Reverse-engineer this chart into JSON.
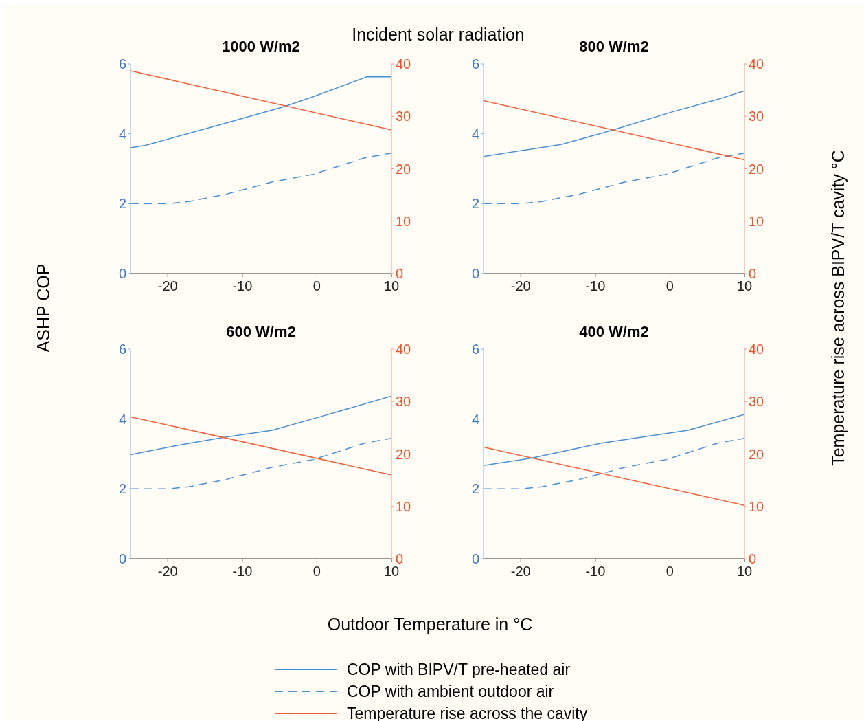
{
  "chart_data": [
    {
      "type": "line",
      "title": "1000 W/m2",
      "annotations": [
        "Incident solar radiation"
      ],
      "xlabel": "Outdoor Temperature in °C",
      "ylabel": "ASHP COP",
      "y2label": "Temperature rise across BIPV/T cavity °C",
      "legend": "bottom",
      "xlim": [
        -25,
        10
      ],
      "xticks": [
        -20,
        -10,
        0,
        10
      ],
      "ylim": [
        0,
        6
      ],
      "yticks": [
        0,
        2,
        4,
        6
      ],
      "y2lim": [
        0,
        40
      ],
      "y2ticks": [
        0,
        10,
        20,
        30,
        40
      ],
      "series": [
        {
          "name": "COP with BIPV/T pre-heated air",
          "color": "#4a8fd4",
          "x": [
            -25,
            -23,
            -13,
            -4.5,
            -0.5,
            6.7,
            10
          ],
          "values": [
            3.6,
            3.67,
            4.26,
            4.77,
            5.06,
            5.63,
            5.63
          ]
        },
        {
          "name": "COP with ambient outdoor air",
          "color": "#4a8fd4",
          "line_style": "dashed",
          "x": [
            -25,
            -20,
            -17.2,
            -12.2,
            -6,
            -0.5,
            6.4,
            10
          ],
          "values": [
            2.0,
            2.0,
            2.06,
            2.27,
            2.62,
            2.84,
            3.31,
            3.45
          ]
        },
        {
          "name": "Temperature rise across the cavity",
          "color": "#f0603a",
          "axis": "y2",
          "x": [
            -25,
            10
          ],
          "values": [
            38.7,
            27.4
          ]
        }
      ]
    },
    {
      "type": "line",
      "title": "800 W/m2",
      "xlim": [
        -25,
        10
      ],
      "xticks": [
        -20,
        -10,
        0,
        10
      ],
      "ylim": [
        0,
        6
      ],
      "yticks": [
        0,
        2,
        4,
        6
      ],
      "y2lim": [
        0,
        40
      ],
      "y2ticks": [
        0,
        10,
        20,
        30,
        40
      ],
      "series": [
        {
          "color": "#4a8fd4",
          "x": [
            -25,
            -14.5,
            -7.9,
            0.2,
            6.5,
            10
          ],
          "values": [
            3.35,
            3.7,
            4.09,
            4.62,
            4.99,
            5.23
          ]
        },
        {
          "color": "#4a8fd4",
          "line_style": "dashed",
          "x": [
            -25,
            -20,
            -17.2,
            -12.2,
            -6,
            -0.5,
            6.4,
            10
          ],
          "values": [
            2.0,
            2.0,
            2.06,
            2.27,
            2.62,
            2.84,
            3.31,
            3.45
          ]
        },
        {
          "color": "#f0603a",
          "axis": "y2",
          "x": [
            -25,
            10
          ],
          "values": [
            33.0,
            21.7
          ]
        }
      ]
    },
    {
      "type": "line",
      "title": "600 W/m2",
      "xlim": [
        -25,
        10
      ],
      "xticks": [
        -20,
        -10,
        0,
        10
      ],
      "ylim": [
        0,
        6
      ],
      "yticks": [
        0,
        2,
        4,
        6
      ],
      "y2lim": [
        0,
        40
      ],
      "y2ticks": [
        0,
        10,
        20,
        30,
        40
      ],
      "series": [
        {
          "color": "#4a8fd4",
          "x": [
            -25,
            -18.6,
            -12.3,
            -6,
            0.2,
            10
          ],
          "values": [
            2.98,
            3.25,
            3.48,
            3.68,
            4.05,
            4.66
          ]
        },
        {
          "color": "#4a8fd4",
          "line_style": "dashed",
          "x": [
            -25,
            -20,
            -17.2,
            -12.2,
            -6,
            -0.5,
            6.4,
            10
          ],
          "values": [
            2.0,
            2.0,
            2.06,
            2.27,
            2.62,
            2.84,
            3.31,
            3.45
          ]
        },
        {
          "color": "#f0603a",
          "axis": "y2",
          "x": [
            -25,
            10
          ],
          "values": [
            27.1,
            16.0
          ]
        }
      ]
    },
    {
      "type": "line",
      "title": "400 W/m2",
      "xlim": [
        -25,
        10
      ],
      "xticks": [
        -20,
        -10,
        0,
        10
      ],
      "ylim": [
        0,
        6
      ],
      "yticks": [
        0,
        2,
        4,
        6
      ],
      "y2lim": [
        0,
        40
      ],
      "y2ticks": [
        0,
        10,
        20,
        30,
        40
      ],
      "series": [
        {
          "color": "#4a8fd4",
          "x": [
            -25,
            -18.6,
            -9.2,
            2.4,
            10
          ],
          "values": [
            2.67,
            2.88,
            3.31,
            3.68,
            4.13
          ]
        },
        {
          "color": "#4a8fd4",
          "line_style": "dashed",
          "x": [
            -25,
            -20,
            -17.2,
            -12.2,
            -6,
            -0.5,
            6.4,
            10
          ],
          "values": [
            2.0,
            2.0,
            2.06,
            2.27,
            2.62,
            2.84,
            3.31,
            3.45
          ]
        },
        {
          "color": "#f0603a",
          "axis": "y2",
          "x": [
            -25,
            10
          ],
          "values": [
            21.3,
            10.2
          ]
        }
      ]
    }
  ]
}
